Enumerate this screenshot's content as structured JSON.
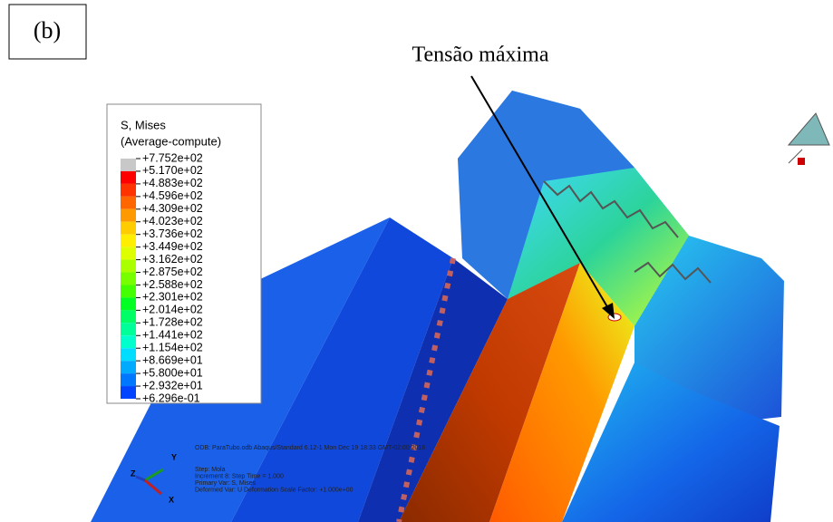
{
  "panel_label": "(b)",
  "annotation": "Tensão máxima",
  "legend": {
    "title": "S, Mises",
    "subtitle": "(Average-compute)",
    "levels": [
      "+7.752e+02",
      "+5.170e+02",
      "+4.883e+02",
      "+4.596e+02",
      "+4.309e+02",
      "+4.023e+02",
      "+3.736e+02",
      "+3.449e+02",
      "+3.162e+02",
      "+2.875e+02",
      "+2.588e+02",
      "+2.301e+02",
      "+2.014e+02",
      "+1.728e+02",
      "+1.441e+02",
      "+1.154e+02",
      "+8.669e+01",
      "+5.800e+01",
      "+2.932e+01",
      "+6.296e-01"
    ],
    "colors": [
      "#c8c8c8",
      "#ff0000",
      "#ff3300",
      "#ff6600",
      "#ff9900",
      "#ffcc00",
      "#ffee00",
      "#ddff00",
      "#aaff00",
      "#77ff00",
      "#44ff00",
      "#00ff22",
      "#00ff66",
      "#00ff99",
      "#00ffcc",
      "#00ddff",
      "#00aaff",
      "#0077ff",
      "#0044ff",
      "#0011ff"
    ]
  },
  "triad": {
    "y": "Y",
    "z": "Z",
    "x": "X"
  },
  "info": [
    "ODB: ParaTubo.odb    Abaqus/Standard 6.12-1    Mon Dec 19 18:33 GMT-02:00 2016",
    "Step: Mola",
    "Increment   8: Step Time =   1.000",
    "Primary Var: S, Mises",
    "Deformed Var: U   Deformation Scale Factor: +1.000e+00"
  ]
}
